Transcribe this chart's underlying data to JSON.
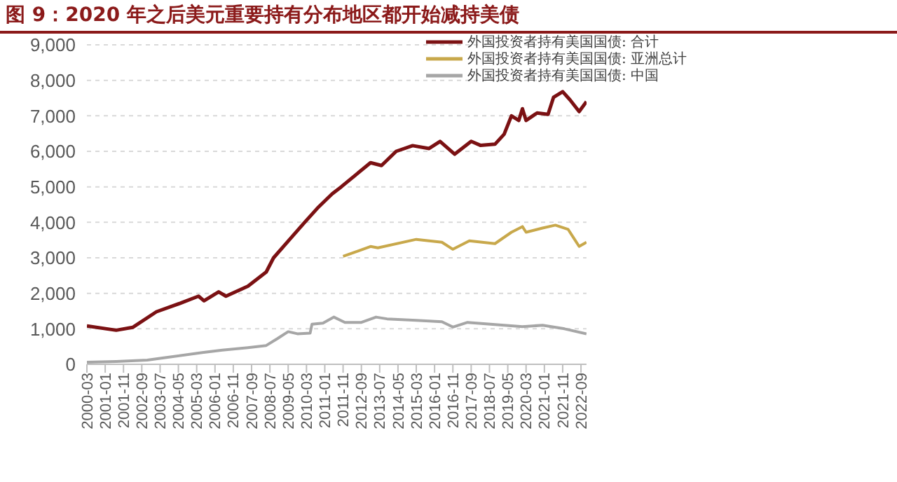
{
  "chart_data": {
    "type": "line",
    "title": "图 9：2020 年之后美元重要持有分布地区都开始减持美债",
    "series": [
      {
        "name": "外国投资者持有美国国债: 合计",
        "color": "#7b1113",
        "x": [
          "2000-03",
          "2001-07",
          "2002-04",
          "2003-05",
          "2004-06",
          "2005-04",
          "2005-07",
          "2006-03",
          "2006-07",
          "2007-07",
          "2008-05",
          "2008-09",
          "2009-05",
          "2010-02",
          "2010-09",
          "2011-05",
          "2011-10",
          "2013-02",
          "2013-08",
          "2014-04",
          "2015-01",
          "2015-10",
          "2016-04",
          "2016-12",
          "2017-09",
          "2018-02",
          "2018-10",
          "2019-03",
          "2019-07",
          "2019-11",
          "2020-01",
          "2020-03",
          "2020-09",
          "2021-03",
          "2021-06",
          "2021-11",
          "2022-03",
          "2022-08",
          "2022-12"
        ],
        "values": [
          1080,
          960,
          1040,
          1480,
          1720,
          1920,
          1790,
          2040,
          1920,
          2200,
          2600,
          3000,
          3470,
          4000,
          4400,
          4800,
          5000,
          5680,
          5600,
          6000,
          6160,
          6080,
          6280,
          5920,
          6280,
          6170,
          6200,
          6480,
          7000,
          6870,
          7200,
          6870,
          7080,
          7040,
          7520,
          7680,
          7450,
          7120,
          7400
        ]
      },
      {
        "name": "外国投资者持有美国国债: 亚洲总计",
        "color": "#c8a84b",
        "x": [
          "2011-11",
          "2013-02",
          "2013-06",
          "2015-03",
          "2016-05",
          "2016-11",
          "2017-08",
          "2018-10",
          "2019-07",
          "2020-01",
          "2020-03",
          "2020-12",
          "2021-07",
          "2022-02",
          "2022-05",
          "2022-08",
          "2022-12"
        ],
        "values": [
          3040,
          3320,
          3280,
          3520,
          3440,
          3240,
          3480,
          3400,
          3720,
          3880,
          3720,
          3840,
          3920,
          3800,
          3560,
          3320,
          3440
        ]
      },
      {
        "name": "外国投资者持有美国国债: 中国",
        "color": "#a6a6a6",
        "x": [
          "2000-03",
          "2001-07",
          "2002-12",
          "2005-06",
          "2006-05",
          "2007-07",
          "2008-05",
          "2008-11",
          "2009-05",
          "2009-10",
          "2010-05",
          "2010-06",
          "2010-12",
          "2011-06",
          "2011-12",
          "2012-09",
          "2013-05",
          "2013-11",
          "2015-03",
          "2016-05",
          "2016-11",
          "2017-07",
          "2018-05",
          "2020-01",
          "2020-12",
          "2021-12",
          "2022-12"
        ],
        "values": [
          60,
          80,
          120,
          330,
          400,
          470,
          530,
          720,
          920,
          860,
          880,
          1130,
          1160,
          1330,
          1180,
          1180,
          1330,
          1280,
          1240,
          1200,
          1050,
          1180,
          1140,
          1060,
          1100,
          1000,
          860
        ]
      }
    ],
    "xlim": [
      "2000-03",
      "2022-12"
    ],
    "xticks": [
      "2000-03",
      "2001-01",
      "2001-11",
      "2002-09",
      "2003-07",
      "2004-05",
      "2005-03",
      "2006-01",
      "2006-11",
      "2007-09",
      "2008-07",
      "2009-05",
      "2010-03",
      "2011-01",
      "2011-11",
      "2012-09",
      "2013-07",
      "2014-05",
      "2015-03",
      "2016-01",
      "2016-11",
      "2017-09",
      "2018-07",
      "2019-05",
      "2020-03",
      "2021-01",
      "2021-11",
      "2022-09"
    ],
    "ylim": [
      0,
      9000
    ],
    "yticks": [
      0,
      {
        "value": 1000,
        "label": "1,000"
      },
      {
        "value": 2000,
        "label": "2,000"
      },
      {
        "value": 3000,
        "label": "3,000"
      },
      {
        "value": 4000,
        "label": "4,000"
      },
      {
        "value": 5000,
        "label": "5,000"
      },
      {
        "value": 6000,
        "label": "6,000"
      },
      {
        "value": 7000,
        "label": "7,000"
      },
      {
        "value": 8000,
        "label": "8,000"
      },
      {
        "value": 9000,
        "label": "9,000"
      }
    ],
    "grid": "y",
    "legend": "top right",
    "marker": "none",
    "line_style": "solid"
  }
}
